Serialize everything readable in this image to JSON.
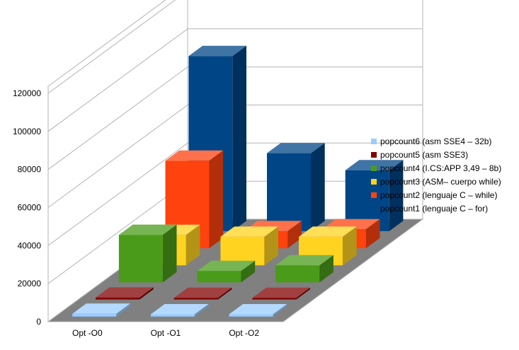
{
  "chart_data": {
    "type": "bar",
    "subtype": "3d-clustered-depth",
    "title": "",
    "xlabel": "",
    "ylabel": "",
    "ylim": [
      0,
      120000
    ],
    "y_ticks": [
      "0",
      "20000",
      "40000",
      "60000",
      "80000",
      "100000",
      "120000"
    ],
    "categories": [
      "Opt -O0",
      "Opt -O1",
      "Opt -O2"
    ],
    "grid": true,
    "legend_position": "right",
    "series": [
      {
        "name": "popcount6 (asm SSE4 – 32b)",
        "color": "#99ccff",
        "values": [
          1500,
          1200,
          1200
        ]
      },
      {
        "name": "popcount5 (asm SSE3)",
        "color": "#800000",
        "values": [
          1000,
          900,
          900
        ]
      },
      {
        "name": "popcount4 (I.CS:APP 3,49 – 8b)",
        "color": "#4a9b1a",
        "values": [
          25000,
          6000,
          9000
        ]
      },
      {
        "name": "popcount3 (ASM– cuerpo while)",
        "color": "#ffd320",
        "values": [
          16000,
          15000,
          15000
        ]
      },
      {
        "name": "popcount2 (lenguaje C – while)",
        "color": "#ff420e",
        "values": [
          46000,
          9000,
          10000
        ]
      },
      {
        "name": "popcount1 (lenguaje C – for)",
        "color": "#004586",
        "values": [
          92000,
          41000,
          32000
        ]
      }
    ]
  }
}
